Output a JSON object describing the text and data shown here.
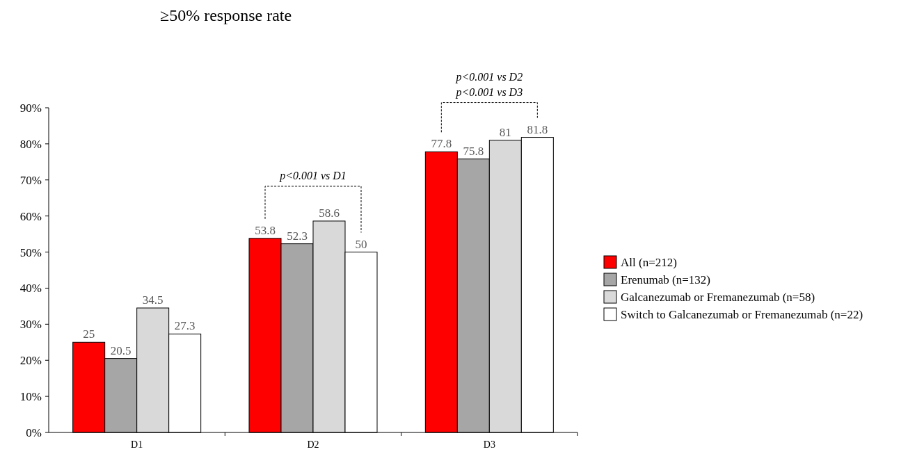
{
  "chart_data": {
    "type": "bar",
    "title": "≥50% response rate",
    "categories": [
      "D1",
      "D2",
      "D3"
    ],
    "series": [
      {
        "name": "All (n=212)",
        "color": "#ff0000",
        "values": [
          25,
          53.8,
          77.8
        ]
      },
      {
        "name": "Erenumab (n=132)",
        "color": "#a6a6a6",
        "values": [
          20.5,
          52.3,
          75.8
        ]
      },
      {
        "name": "Galcanezumab or Fremanezumab (n=58)",
        "color": "#d9d9d9",
        "values": [
          34.5,
          58.6,
          81
        ]
      },
      {
        "name": "Switch to Galcanezumab or Fremanezumab (n=22)",
        "color": "#ffffff",
        "values": [
          27.3,
          50,
          81.8
        ]
      }
    ],
    "ylim": [
      0,
      90
    ],
    "yticks": [
      {
        "value": 0,
        "label": "0%"
      },
      {
        "value": 10,
        "label": "10%"
      },
      {
        "value": 20,
        "label": "20%"
      },
      {
        "value": 30,
        "label": "30%"
      },
      {
        "value": 40,
        "label": "40%"
      },
      {
        "value": 50,
        "label": "50%"
      },
      {
        "value": 60,
        "label": "60%"
      },
      {
        "value": 70,
        "label": "70%"
      },
      {
        "value": 80,
        "label": "80%"
      },
      {
        "value": 90,
        "label": "90%"
      }
    ],
    "data_labels": true,
    "legend": "right",
    "grid": false,
    "annotations": [
      "p<0.001 vs D1",
      "p<0.001 vs D2",
      "p<0.001 vs D3"
    ]
  }
}
